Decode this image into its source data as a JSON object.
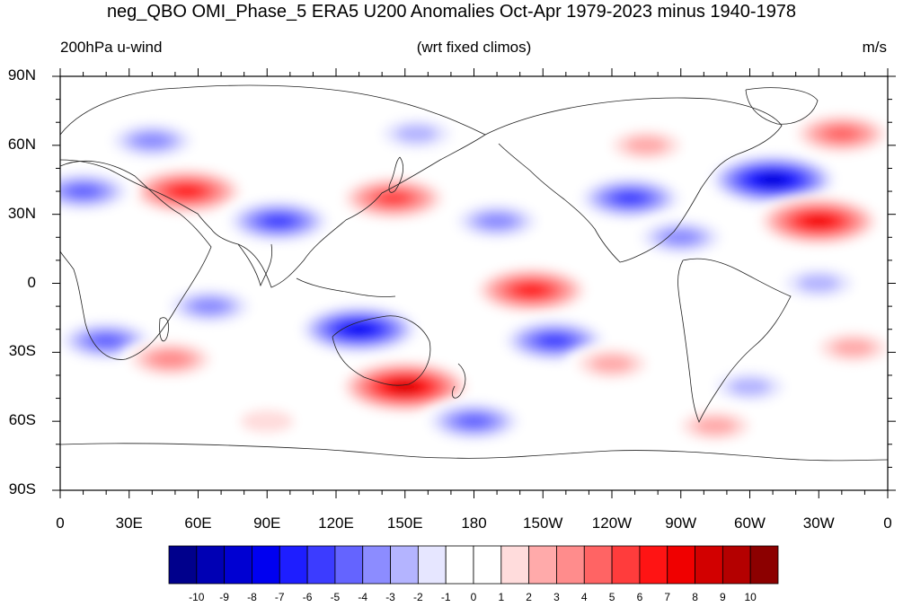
{
  "title": "neg_QBO OMI_Phase_5 ERA5 U200 Anomalies Oct-Apr 1979-2023 minus 1940-1978",
  "left_string": "200hPa u-wind",
  "center_string": "(wrt fixed climos)",
  "right_string": "m/s",
  "lat_labels": [
    "90N",
    "60N",
    "30N",
    "0",
    "30S",
    "60S",
    "90S"
  ],
  "lon_labels": [
    "0",
    "30E",
    "60E",
    "90E",
    "120E",
    "150E",
    "180",
    "150W",
    "120W",
    "90W",
    "60W",
    "30W",
    "0"
  ],
  "colorbar": {
    "colors": [
      "#00008c",
      "#0000b4",
      "#0000d2",
      "#0000f0",
      "#1e1eff",
      "#3c3cff",
      "#6464ff",
      "#8c8cff",
      "#b4b4ff",
      "#e6e6ff",
      "#ffffff",
      "#ffffff",
      "#ffdcdc",
      "#ffaaaa",
      "#ff8c8c",
      "#ff6464",
      "#ff3c3c",
      "#ff1414",
      "#f00000",
      "#d20000",
      "#b40000",
      "#8c0000"
    ],
    "labels": [
      "-10",
      "-9",
      "-8",
      "-7",
      "-6",
      "-5",
      "-4",
      "-3",
      "-2",
      "-1",
      "0",
      "1",
      "2",
      "3",
      "4",
      "5",
      "6",
      "7",
      "8",
      "9",
      "10"
    ]
  },
  "anomaly_features": [
    {
      "lon": 40,
      "lat": 62,
      "value": -4
    },
    {
      "lon": 55,
      "lat": 40,
      "value": 7
    },
    {
      "lon": 10,
      "lat": 40,
      "value": -5
    },
    {
      "lon": 95,
      "lat": 27,
      "value": -6
    },
    {
      "lon": 145,
      "lat": 37,
      "value": 6
    },
    {
      "lon": 155,
      "lat": 65,
      "value": -3
    },
    {
      "lon": 190,
      "lat": 27,
      "value": -4
    },
    {
      "lon": 248,
      "lat": 37,
      "value": -6
    },
    {
      "lon": 255,
      "lat": 60,
      "value": 3
    },
    {
      "lon": 310,
      "lat": 45,
      "value": -9
    },
    {
      "lon": 330,
      "lat": 27,
      "value": 8
    },
    {
      "lon": 340,
      "lat": 65,
      "value": 5
    },
    {
      "lon": 205,
      "lat": -3,
      "value": 7
    },
    {
      "lon": 130,
      "lat": -20,
      "value": -8
    },
    {
      "lon": 215,
      "lat": -25,
      "value": -6
    },
    {
      "lon": 150,
      "lat": -45,
      "value": 9
    },
    {
      "lon": 20,
      "lat": -25,
      "value": -5
    },
    {
      "lon": 65,
      "lat": -10,
      "value": -4
    },
    {
      "lon": 48,
      "lat": -33,
      "value": 4
    },
    {
      "lon": 240,
      "lat": -35,
      "value": 3
    },
    {
      "lon": 300,
      "lat": -45,
      "value": -3
    },
    {
      "lon": 180,
      "lat": -60,
      "value": -5
    },
    {
      "lon": 90,
      "lat": -60,
      "value": 2
    },
    {
      "lon": 285,
      "lat": -62,
      "value": 3
    },
    {
      "lon": 330,
      "lat": 0,
      "value": -3
    },
    {
      "lon": 345,
      "lat": -28,
      "value": 3
    },
    {
      "lon": 270,
      "lat": 20,
      "value": -4
    }
  ]
}
